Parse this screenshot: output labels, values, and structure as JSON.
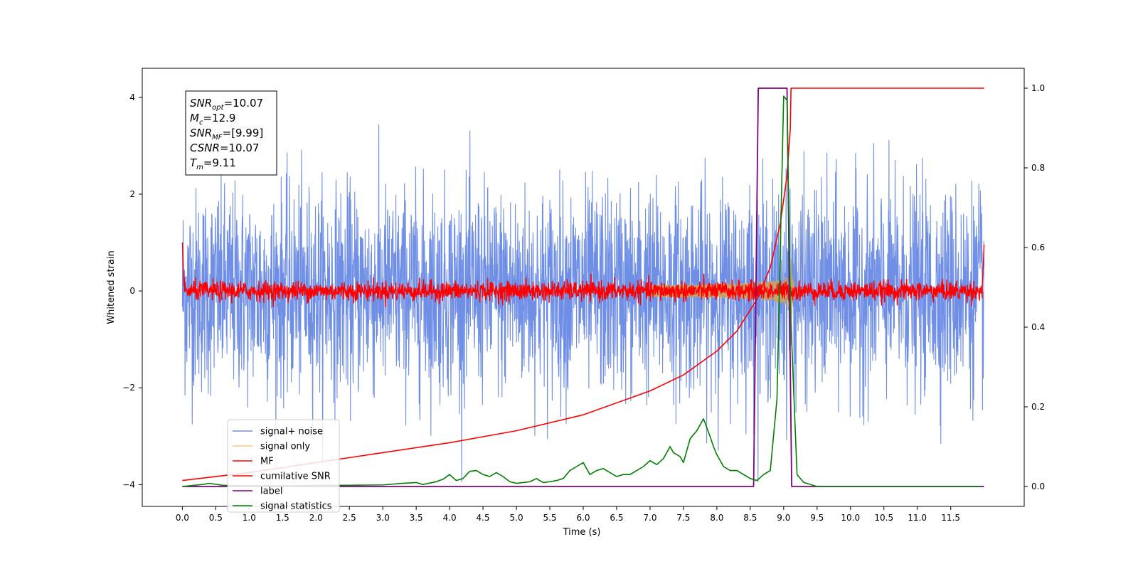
{
  "chart_data": {
    "type": "line",
    "xlabel": "Time (s)",
    "ylabel": "Whitened strain",
    "xlim": [
      -0.6,
      12.6
    ],
    "ylim": [
      -4.45,
      4.6
    ],
    "y2lim": [
      -0.05,
      1.05
    ],
    "x_ticks": [
      "0.0",
      "0.5",
      "1.0",
      "1.5",
      "2.0",
      "2.5",
      "3.0",
      "3.5",
      "4.0",
      "4.5",
      "5.0",
      "5.5",
      "6.0",
      "6.5",
      "7.0",
      "7.5",
      "8.0",
      "8.5",
      "9.0",
      "9.5",
      "10.0",
      "10.5",
      "11.0",
      "11.5"
    ],
    "y_ticks": [
      "4",
      "2",
      "0",
      "−2",
      "−4"
    ],
    "y2_ticks": [
      "1.0",
      "0.8",
      "0.6",
      "0.4",
      "0.2",
      "0.0"
    ],
    "legend_position": "lower-left",
    "annotation": {
      "lines": [
        {
          "base": "SNR",
          "sub": "opt",
          "value": "=10.07"
        },
        {
          "base": "M",
          "sub": "c",
          "value": "=12.9"
        },
        {
          "base": "SNR",
          "sub": "MF",
          "value": "=[9.99]"
        },
        {
          "base": "CSNR",
          "sub": "",
          "value": "=10.07"
        },
        {
          "base": "T",
          "sub": "m",
          "value": "=9.11"
        }
      ]
    },
    "series": [
      {
        "name": "signal+ noise",
        "color": "#6f8ee6",
        "axis": "left",
        "kind": "noise",
        "std": 1.05,
        "x_range": [
          0,
          12
        ]
      },
      {
        "name": "signal only",
        "color": "#f5c882",
        "axis": "left",
        "kind": "chirp",
        "merger_time": 9.11,
        "peak_amplitude": 0.75
      },
      {
        "name": "MF",
        "color": "#ff0000",
        "axis": "left",
        "kind": "noise",
        "std": 0.1,
        "x_range": [
          0,
          12
        ]
      },
      {
        "name": "cumilative SNR",
        "color": "#ff0000",
        "axis": "right",
        "x": [
          0.0,
          1.0,
          2.0,
          3.0,
          4.0,
          5.0,
          6.0,
          7.0,
          7.5,
          8.0,
          8.3,
          8.6,
          8.8,
          8.95,
          9.05,
          9.1,
          9.11,
          12.0
        ],
        "y": [
          0.015,
          0.035,
          0.06,
          0.085,
          0.11,
          0.14,
          0.18,
          0.24,
          0.28,
          0.34,
          0.39,
          0.47,
          0.55,
          0.66,
          0.78,
          0.9,
          1.0,
          1.0
        ]
      },
      {
        "name": "label",
        "color": "#800080",
        "axis": "right",
        "x": [
          0.0,
          8.55,
          8.62,
          9.05,
          9.12,
          12.0
        ],
        "y": [
          0.0,
          0.0,
          1.0,
          1.0,
          0.0,
          0.0
        ]
      },
      {
        "name": "signal statistics",
        "color": "#008000",
        "axis": "right",
        "x": [
          0.0,
          0.3,
          0.4,
          0.6,
          1.0,
          1.5,
          2.0,
          2.5,
          3.0,
          3.3,
          3.5,
          3.6,
          3.8,
          3.9,
          4.0,
          4.1,
          4.2,
          4.3,
          4.4,
          4.5,
          4.6,
          4.7,
          4.8,
          4.9,
          5.0,
          5.1,
          5.2,
          5.3,
          5.4,
          5.5,
          5.6,
          5.7,
          5.8,
          5.9,
          6.0,
          6.1,
          6.2,
          6.3,
          6.4,
          6.5,
          6.6,
          6.7,
          6.8,
          6.9,
          7.0,
          7.1,
          7.2,
          7.3,
          7.35,
          7.4,
          7.45,
          7.5,
          7.6,
          7.65,
          7.7,
          7.8,
          7.9,
          7.95,
          8.0,
          8.1,
          8.2,
          8.3,
          8.4,
          8.5,
          8.6,
          8.7,
          8.8,
          8.9,
          9.0,
          9.05,
          9.1,
          9.2,
          9.3,
          9.5,
          10.0,
          11.0,
          11.95
        ],
        "y": [
          0.0,
          0.005,
          0.008,
          0.003,
          0.002,
          0.002,
          0.003,
          0.003,
          0.004,
          0.008,
          0.01,
          0.005,
          0.012,
          0.018,
          0.03,
          0.015,
          0.02,
          0.038,
          0.04,
          0.03,
          0.025,
          0.035,
          0.025,
          0.012,
          0.008,
          0.01,
          0.012,
          0.02,
          0.01,
          0.012,
          0.015,
          0.02,
          0.04,
          0.05,
          0.06,
          0.03,
          0.04,
          0.045,
          0.035,
          0.025,
          0.03,
          0.03,
          0.04,
          0.05,
          0.065,
          0.055,
          0.07,
          0.1,
          0.085,
          0.08,
          0.075,
          0.06,
          0.12,
          0.13,
          0.14,
          0.17,
          0.125,
          0.1,
          0.08,
          0.05,
          0.04,
          0.04,
          0.03,
          0.02,
          0.015,
          0.03,
          0.04,
          0.22,
          0.98,
          0.97,
          0.45,
          0.03,
          0.01,
          0.0,
          0.0,
          0.0,
          0.0
        ]
      }
    ]
  }
}
